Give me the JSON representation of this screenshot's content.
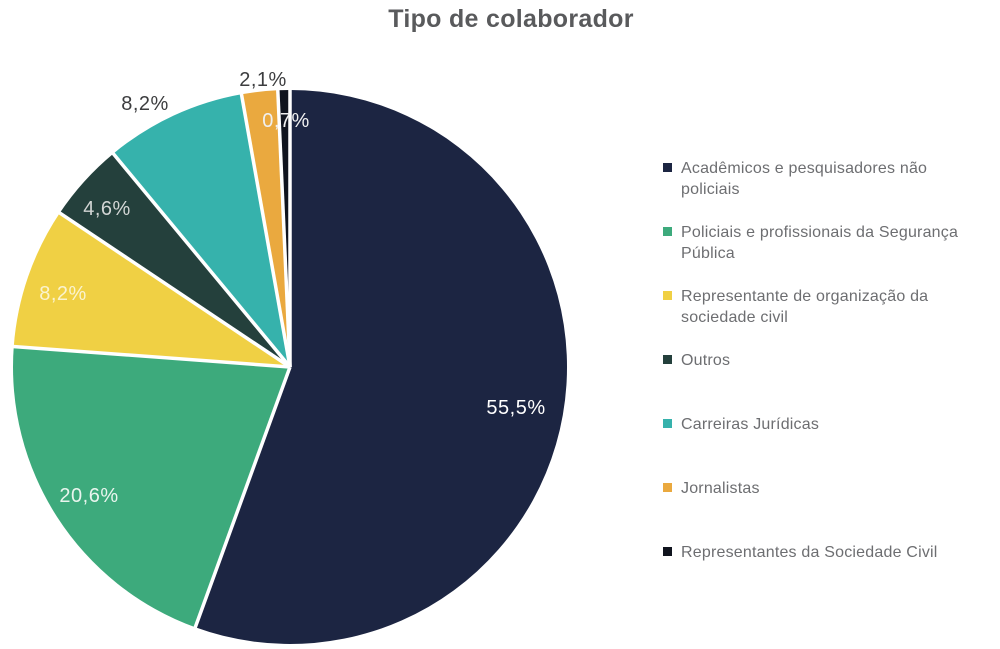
{
  "page": {
    "background": "#ffffff"
  },
  "chart_data": {
    "type": "pie",
    "title": "Tipo de colaborador",
    "title_color": "#595a5c",
    "legend_position": "right",
    "legend_text_color": "#6d6e71",
    "direction": "clockwise",
    "start_angle_deg": 0,
    "slices": [
      {
        "label": "Acadêmicos e pesquisadores não policiais",
        "value": 55.5,
        "display": "55,5%",
        "color": "#1c2542",
        "label_color": "#ffffff",
        "label_placement": "inside"
      },
      {
        "label": "Policiais e profissionais da Segurança Pública",
        "value": 20.6,
        "display": "20,6%",
        "color": "#3daa7c",
        "label_color": "#e9f5ee",
        "label_placement": "inside"
      },
      {
        "label": "Representante de organização da sociedade civil",
        "value": 8.2,
        "display": "8,2%",
        "color": "#f0d044",
        "label_color": "#faf3cf",
        "label_placement": "inside"
      },
      {
        "label": "Outros",
        "value": 4.6,
        "display": "4,6%",
        "color": "#24403c",
        "label_color": "#d2d5d4",
        "label_placement": "inside"
      },
      {
        "label": "Carreiras Jurídicas",
        "value": 8.2,
        "display": "8,2%",
        "color": "#36b2ac",
        "label_color": "#3c3d3f",
        "label_placement": "outside"
      },
      {
        "label": "Jornalistas",
        "value": 2.1,
        "display": "2,1%",
        "color": "#eaa93f",
        "label_color": "#3c3d3f",
        "label_placement": "outside"
      },
      {
        "label": "Representantes da Sociedade Civil",
        "value": 0.7,
        "display": "0,7%",
        "color": "#10141e",
        "label_color": "#f0f0f0",
        "label_placement": "inside"
      }
    ]
  }
}
